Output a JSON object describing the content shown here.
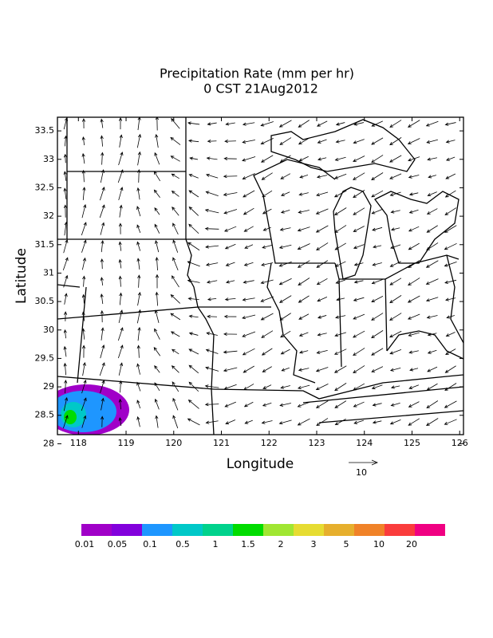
{
  "chart_data": {
    "type": "vector-map",
    "title": "Precipitation Rate (mm per hr)",
    "subtitle": "0 CST 21Aug2012",
    "xlabel": "Longitude",
    "ylabel": "Latitude",
    "xlim": [
      117.56,
      126.08
    ],
    "ylim": [
      28.16,
      33.74
    ],
    "xticks": [
      118,
      119,
      120,
      121,
      122,
      123,
      124,
      125,
      126
    ],
    "yticks": [
      28,
      28.5,
      29,
      29.5,
      30,
      30.5,
      31,
      31.5,
      32,
      32.5,
      33,
      33.5
    ],
    "reference_vector": 10,
    "colorbar": {
      "levels": [
        0.01,
        0.05,
        0.1,
        0.5,
        1,
        1.5,
        2,
        3,
        5,
        10,
        20
      ],
      "colors": [
        "#a000c8",
        "#8200dc",
        "#1e96ff",
        "#00c8c8",
        "#00d28c",
        "#00dc00",
        "#a0e632",
        "#e6dc32",
        "#e6af2d",
        "#f08228",
        "#fa3c3c",
        "#f00082"
      ]
    }
  }
}
